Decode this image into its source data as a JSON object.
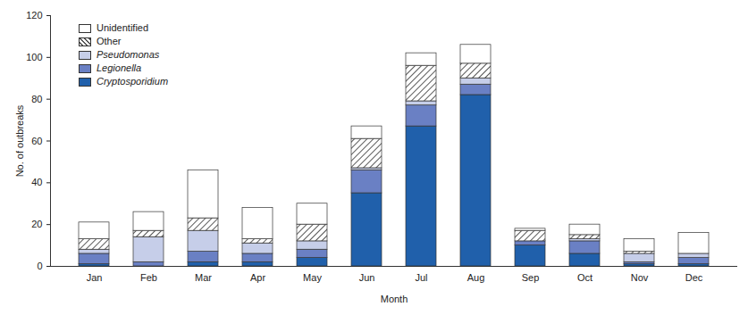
{
  "chart_data": {
    "type": "bar",
    "stacked": true,
    "x_label": "Month",
    "y_label": "No. of outbreaks",
    "categories": [
      "Jan",
      "Feb",
      "Mar",
      "Apr",
      "May",
      "Jun",
      "Jul",
      "Aug",
      "Sep",
      "Oct",
      "Nov",
      "Dec"
    ],
    "series": [
      {
        "name": "Cryptosporidium",
        "color": "#2060ab",
        "values": [
          1,
          0,
          2,
          2,
          4,
          35,
          67,
          82,
          10,
          6,
          1,
          1
        ]
      },
      {
        "name": "Legionella",
        "color": "#6a80c4",
        "values": [
          5,
          2,
          5,
          4,
          4,
          11,
          10,
          5,
          2,
          6,
          1,
          3
        ]
      },
      {
        "name": "Pseudomonas",
        "color": "#c6cee9",
        "values": [
          2,
          12,
          10,
          5,
          4,
          1,
          2,
          3,
          0,
          1,
          4,
          2
        ]
      },
      {
        "name": "Other",
        "color": "#555555",
        "line_style": "hatched",
        "values": [
          5,
          3,
          6,
          2,
          8,
          14,
          17,
          7,
          5,
          2,
          1,
          0
        ]
      },
      {
        "name": "Unidentified",
        "color": "#ffffff",
        "values": [
          8,
          9,
          23,
          15,
          10,
          6,
          6,
          9,
          1,
          5,
          6,
          10
        ]
      }
    ],
    "ylim": [
      0,
      120
    ],
    "yticks": [
      0,
      20,
      40,
      60,
      80,
      100,
      120
    ],
    "grid": false,
    "legend": "top-left"
  }
}
